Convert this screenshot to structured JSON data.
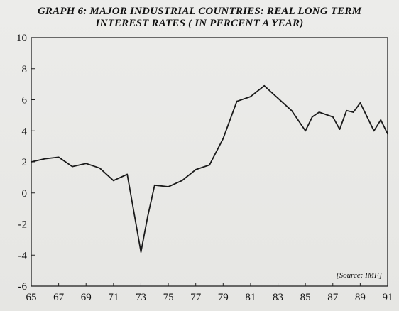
{
  "chart_data": {
    "type": "line",
    "title": "GRAPH 6: MAJOR INDUSTRIAL COUNTRIES: REAL LONG TERM",
    "subtitle": "INTEREST RATES ( IN PERCENT A YEAR)",
    "source": "[Source: IMF]",
    "x_tick_labels": [
      "65",
      "67",
      "69",
      "71",
      "73",
      "75",
      "77",
      "79",
      "81",
      "83",
      "85",
      "87",
      "89",
      "91"
    ],
    "y_tick_labels": [
      "10",
      "8",
      "6",
      "4",
      "2",
      "0",
      "-2",
      "-4",
      "-6"
    ],
    "xlim": [
      1965,
      1991
    ],
    "ylim": [
      -6,
      10
    ],
    "grid": false,
    "line_color": "#1a1a1a",
    "series": [
      {
        "x": [
          1965,
          1966,
          1967,
          1968,
          1969,
          1970,
          1971,
          1972,
          1973,
          1973.5,
          1974,
          1975,
          1976,
          1977,
          1978,
          1979,
          1980,
          1981,
          1982,
          1983,
          1984,
          1985,
          1985.5,
          1986,
          1987,
          1987.5,
          1988,
          1988.5,
          1989,
          1990,
          1990.5,
          1991
        ],
        "y": [
          2.0,
          2.2,
          2.3,
          1.7,
          1.9,
          1.6,
          0.8,
          1.2,
          -3.8,
          -1.5,
          0.5,
          0.4,
          0.8,
          1.5,
          1.8,
          3.5,
          5.9,
          6.2,
          6.9,
          6.1,
          5.3,
          4.0,
          4.9,
          5.2,
          4.9,
          4.1,
          5.3,
          5.2,
          5.8,
          4.0,
          4.7,
          3.8
        ]
      }
    ]
  }
}
